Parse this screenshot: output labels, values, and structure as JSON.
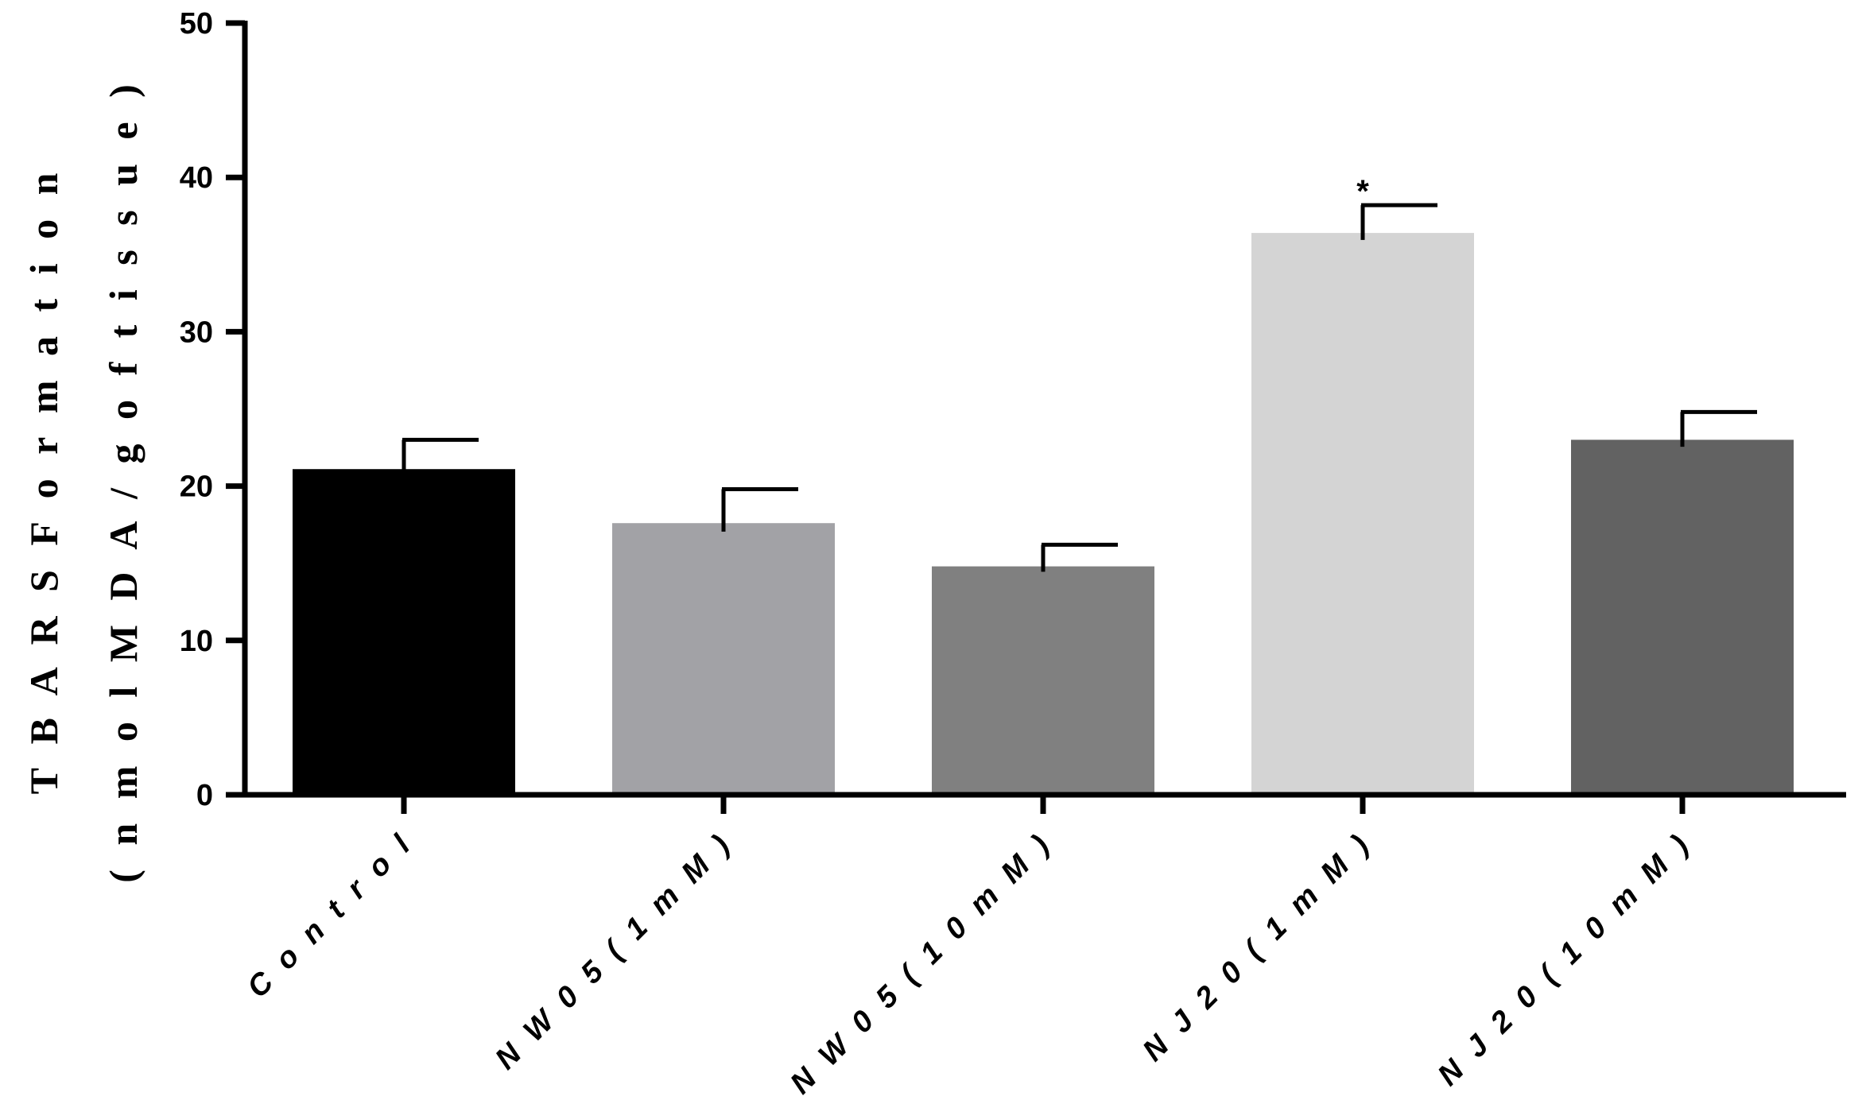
{
  "chart_data": {
    "type": "bar",
    "title": "",
    "xlabel": "",
    "ylabel_lines": [
      "T B A R S  F o r m a t i o n",
      "( n m o l  M D A / g  o f  t i s s u e )"
    ],
    "ylim": [
      0,
      50
    ],
    "yticks": [
      0,
      10,
      20,
      30,
      40,
      50
    ],
    "tick_labels": [
      "0",
      "10",
      "20",
      "30",
      "40",
      "50"
    ],
    "categories": [
      "Control",
      "NW05 (1 mM)",
      "NW05 (10 mM)",
      "NJ20 (1 mM)",
      "NJ20 (10 mM)"
    ],
    "category_labels": [
      "C o n t r o l",
      "N W 0 5  ( 1  m M )",
      "N W 0 5  ( 1 0  m M )",
      "N J 2 0  ( 1  m M )",
      "N J 2 0  ( 1 0  m M )"
    ],
    "values": [
      21.1,
      17.6,
      14.8,
      36.4,
      23.0
    ],
    "errors": [
      1.9,
      2.2,
      1.4,
      1.8,
      1.8
    ],
    "colors": [
      "#000000",
      "#a2a2a6",
      "#808080",
      "#d4d4d4",
      "#626262"
    ],
    "annotations": [
      "",
      "",
      "",
      "*",
      ""
    ],
    "grid": false,
    "legend": "none"
  }
}
